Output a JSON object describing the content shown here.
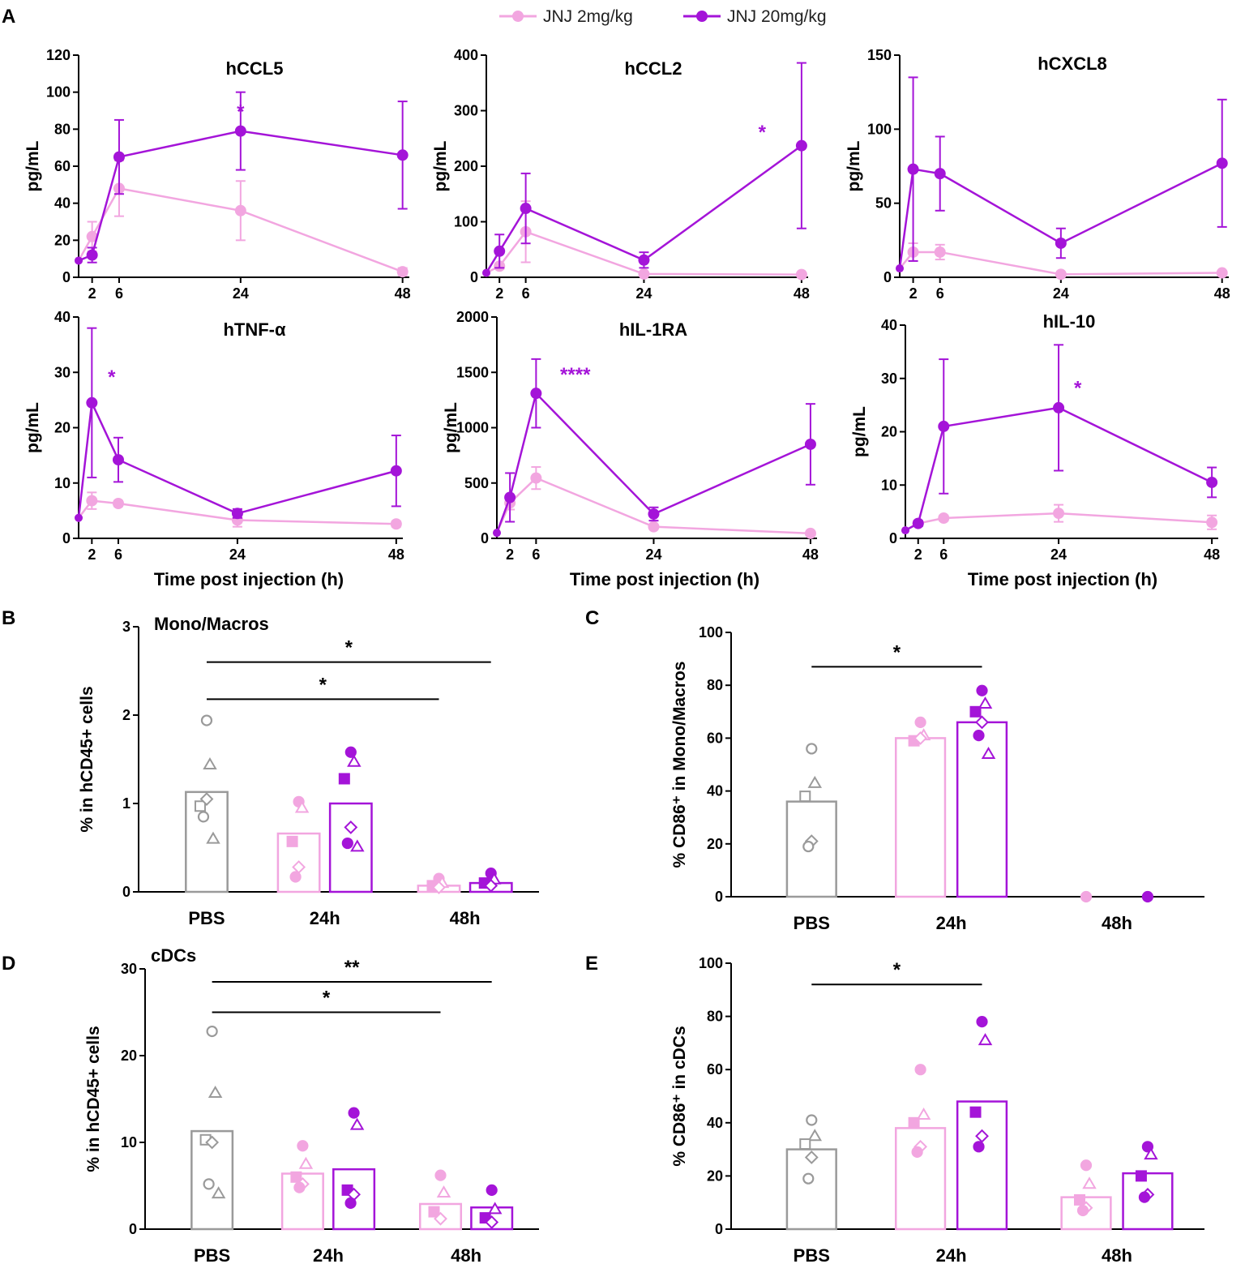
{
  "colors": {
    "low": "#f2a6e0",
    "high": "#a414d8",
    "pbs": "#9a9a9a",
    "sig": "#a414d8"
  },
  "legend": [
    {
      "label": "JNJ 2mg/kg",
      "color": "#f2a6e0"
    },
    {
      "label": "JNJ 20mg/kg",
      "color": "#a414d8"
    }
  ],
  "panel_labels": [
    "A",
    "B",
    "C",
    "D",
    "E"
  ],
  "chart_data": [
    {
      "type": "line",
      "panel": "A",
      "title": "hCCL5",
      "xlabel": "",
      "ylabel": "pg/mL",
      "xticks": [
        2,
        6,
        24,
        48
      ],
      "xlim": [
        0,
        49
      ],
      "ylim": [
        0,
        120
      ],
      "yticks": [
        0,
        20,
        40,
        60,
        80,
        100,
        120
      ],
      "series": [
        {
          "name": "JNJ 2mg/kg",
          "x": [
            0,
            2,
            6,
            24,
            48
          ],
          "y": [
            9,
            22,
            48,
            36,
            3
          ],
          "err": [
            3,
            8,
            15,
            16,
            2
          ]
        },
        {
          "name": "JNJ 20mg/kg",
          "x": [
            0,
            2,
            6,
            24,
            48
          ],
          "y": [
            9,
            12,
            65,
            79,
            66
          ],
          "err": [
            3,
            4,
            20,
            21,
            29
          ]
        }
      ],
      "annotations": [
        {
          "text": "*",
          "x": 24,
          "y": 86
        }
      ]
    },
    {
      "type": "line",
      "panel": "A",
      "title": "hCCL2",
      "xlabel": "",
      "ylabel": "pg/mL",
      "xticks": [
        2,
        6,
        24,
        48
      ],
      "xlim": [
        0,
        49
      ],
      "ylim": [
        0,
        400
      ],
      "yticks": [
        0,
        100,
        200,
        300,
        400
      ],
      "series": [
        {
          "name": "JNJ 2mg/kg",
          "x": [
            0,
            2,
            6,
            24,
            48
          ],
          "y": [
            8,
            20,
            82,
            6,
            5
          ],
          "err": [
            3,
            5,
            55,
            4,
            3
          ]
        },
        {
          "name": "JNJ 20mg/kg",
          "x": [
            0,
            2,
            6,
            24,
            48
          ],
          "y": [
            8,
            47,
            124,
            31,
            237
          ],
          "err": [
            3,
            30,
            63,
            14,
            149
          ]
        }
      ],
      "annotations": [
        {
          "text": "*",
          "x": 42,
          "y": 250
        }
      ]
    },
    {
      "type": "line",
      "panel": "A",
      "title": "hCXCL8",
      "xlabel": "",
      "ylabel": "pg/mL",
      "xticks": [
        2,
        6,
        24,
        48
      ],
      "xlim": [
        0,
        49
      ],
      "ylim": [
        0,
        150
      ],
      "yticks": [
        0,
        50,
        100,
        150
      ],
      "series": [
        {
          "name": "JNJ 2mg/kg",
          "x": [
            0,
            2,
            6,
            24,
            48
          ],
          "y": [
            6,
            17,
            17,
            2,
            3
          ],
          "err": [
            3,
            6,
            5,
            1,
            1
          ]
        },
        {
          "name": "JNJ 20mg/kg",
          "x": [
            0,
            2,
            6,
            24,
            48
          ],
          "y": [
            6,
            73,
            70,
            23,
            77
          ],
          "err": [
            3,
            62,
            25,
            10,
            43
          ]
        }
      ],
      "annotations": []
    },
    {
      "type": "line",
      "panel": "A",
      "title": "hTNF-α",
      "xlabel": "Time post injection (h)",
      "ylabel": "pg/mL",
      "xticks": [
        2,
        6,
        24,
        48
      ],
      "xlim": [
        0,
        49
      ],
      "ylim": [
        0,
        40
      ],
      "yticks": [
        0,
        10,
        20,
        30,
        40
      ],
      "series": [
        {
          "name": "JNJ 2mg/kg",
          "x": [
            0,
            2,
            6,
            24,
            48
          ],
          "y": [
            3.7,
            6.8,
            6.3,
            3.3,
            2.6
          ],
          "err": [
            0.8,
            1.5,
            0.5,
            1.2,
            0.5
          ]
        },
        {
          "name": "JNJ 20mg/kg",
          "x": [
            0,
            2,
            6,
            24,
            48
          ],
          "y": [
            3.7,
            24.5,
            14.2,
            4.5,
            12.2
          ],
          "err": [
            0.8,
            13.5,
            4,
            0.8,
            6.4
          ]
        }
      ],
      "annotations": [
        {
          "text": "*",
          "x": 5,
          "y": 28
        }
      ]
    },
    {
      "type": "line",
      "panel": "A",
      "title": "hIL-1RA",
      "xlabel": "Time post injection (h)",
      "ylabel": "pg/mL",
      "xticks": [
        2,
        6,
        24,
        48
      ],
      "xlim": [
        0,
        49
      ],
      "ylim": [
        0,
        2000
      ],
      "yticks": [
        0,
        500,
        1000,
        1500,
        2000
      ],
      "series": [
        {
          "name": "JNJ 2mg/kg",
          "x": [
            0,
            2,
            6,
            24,
            48
          ],
          "y": [
            50,
            320,
            545,
            105,
            45
          ],
          "err": [
            20,
            60,
            100,
            20,
            15
          ]
        },
        {
          "name": "JNJ 20mg/kg",
          "x": [
            0,
            2,
            6,
            24,
            48
          ],
          "y": [
            50,
            370,
            1310,
            220,
            850
          ],
          "err": [
            20,
            220,
            310,
            60,
            365
          ]
        }
      ],
      "annotations": [
        {
          "text": "****",
          "x": 12,
          "y": 1420
        }
      ]
    },
    {
      "type": "line",
      "panel": "A",
      "title": "hIL-10",
      "xlabel": "Time post injection (h)",
      "ylabel": "pg/mL",
      "xticks": [
        2,
        6,
        24,
        48
      ],
      "xlim": [
        0,
        49
      ],
      "ylim": [
        0,
        40
      ],
      "yticks": [
        0,
        10,
        20,
        30,
        40
      ],
      "series": [
        {
          "name": "JNJ 2mg/kg",
          "x": [
            0,
            2,
            6,
            24,
            48
          ],
          "y": [
            1.5,
            2.8,
            3.8,
            4.7,
            3
          ],
          "err": [
            0.4,
            0.5,
            0.5,
            1.6,
            1.3
          ]
        },
        {
          "name": "JNJ 20mg/kg",
          "x": [
            0,
            2,
            6,
            24,
            48
          ],
          "y": [
            1.5,
            2.8,
            21,
            24.5,
            10.5
          ],
          "err": [
            0.4,
            0.5,
            12.6,
            11.8,
            2.8
          ]
        }
      ],
      "annotations": [
        {
          "text": "*",
          "x": 27,
          "y": 27
        }
      ]
    },
    {
      "type": "bar",
      "panel": "B",
      "title": "Mono/Macros",
      "ylabel": "% in hCD45+ cells",
      "xlabel": "",
      "categories": [
        "PBS",
        "24h",
        "48h"
      ],
      "ylim": [
        0,
        3
      ],
      "yticks": [
        0,
        1,
        2,
        3
      ],
      "bars": [
        {
          "category": "PBS",
          "group": "PBS",
          "value": 1.13,
          "points": [
            1.94,
            1.44,
            0.97,
            1.05,
            0.85,
            0.6
          ]
        },
        {
          "category": "24h",
          "group": "JNJ 2mg/kg",
          "value": 0.66,
          "points": [
            1.02,
            0.95,
            0.57,
            0.28,
            0.17
          ]
        },
        {
          "category": "24h",
          "group": "JNJ 20mg/kg",
          "value": 1.0,
          "points": [
            1.58,
            1.47,
            1.28,
            0.73,
            0.55,
            0.51
          ]
        },
        {
          "category": "48h",
          "group": "JNJ 2mg/kg",
          "value": 0.07,
          "points": [
            0.15,
            0.1,
            0.07,
            0.05
          ]
        },
        {
          "category": "48h",
          "group": "JNJ 20mg/kg",
          "value": 0.1,
          "points": [
            0.21,
            0.14,
            0.1,
            0.07
          ]
        }
      ],
      "significance": [
        {
          "from": "PBS",
          "to": "48h high",
          "text": "*",
          "y": 2.6
        },
        {
          "from": "PBS",
          "to": "48h low",
          "text": "*",
          "y": 2.18
        }
      ]
    },
    {
      "type": "bar",
      "panel": "C",
      "title": "",
      "ylabel": "% CD86⁺ in Mono/Macros",
      "xlabel": "",
      "categories": [
        "PBS",
        "24h",
        "48h"
      ],
      "ylim": [
        0,
        100
      ],
      "yticks": [
        0,
        20,
        40,
        60,
        80,
        100
      ],
      "bars": [
        {
          "category": "PBS",
          "group": "PBS",
          "value": 36,
          "points": [
            56,
            43,
            38,
            21,
            19
          ]
        },
        {
          "category": "24h",
          "group": "JNJ 2mg/kg",
          "value": 60,
          "points": [
            66,
            61,
            59,
            60
          ]
        },
        {
          "category": "24h",
          "group": "JNJ 20mg/kg",
          "value": 66,
          "points": [
            78,
            73,
            70,
            66,
            61,
            54
          ]
        },
        {
          "category": "48h",
          "group": "JNJ 2mg/kg",
          "value": 0,
          "points": [
            0
          ]
        },
        {
          "category": "48h",
          "group": "JNJ 20mg/kg",
          "value": 0,
          "points": [
            0
          ]
        }
      ],
      "significance": [
        {
          "from": "PBS",
          "to": "24h",
          "text": "*",
          "y": 87
        }
      ]
    },
    {
      "type": "bar",
      "panel": "D",
      "title": "cDCs",
      "ylabel": "% in hCD45+ cells",
      "xlabel": "",
      "categories": [
        "PBS",
        "24h",
        "48h"
      ],
      "ylim": [
        0,
        30
      ],
      "yticks": [
        0,
        10,
        20,
        30
      ],
      "bars": [
        {
          "category": "PBS",
          "group": "PBS",
          "value": 11.3,
          "points": [
            22.8,
            15.7,
            10.3,
            10,
            5.2,
            4.1
          ]
        },
        {
          "category": "24h",
          "group": "JNJ 2mg/kg",
          "value": 6.4,
          "points": [
            9.6,
            7.5,
            6,
            5.2,
            4.8
          ]
        },
        {
          "category": "24h",
          "group": "JNJ 20mg/kg",
          "value": 6.9,
          "points": [
            13.4,
            12,
            4.5,
            4,
            3
          ]
        },
        {
          "category": "48h",
          "group": "JNJ 2mg/kg",
          "value": 2.9,
          "points": [
            6.2,
            4.2,
            2,
            1.2
          ]
        },
        {
          "category": "48h",
          "group": "JNJ 20mg/kg",
          "value": 2.5,
          "points": [
            4.5,
            2.3,
            1.3,
            0.8
          ]
        }
      ],
      "significance": [
        {
          "from": "PBS",
          "to": "48h high",
          "text": "**",
          "y": 28.5
        },
        {
          "from": "PBS",
          "to": "48h low",
          "text": "*",
          "y": 25
        }
      ]
    },
    {
      "type": "bar",
      "panel": "E",
      "title": "",
      "ylabel": "% CD86⁺ in cDCs",
      "xlabel": "",
      "categories": [
        "PBS",
        "24h",
        "48h"
      ],
      "ylim": [
        0,
        100
      ],
      "yticks": [
        0,
        20,
        40,
        60,
        80,
        100
      ],
      "bars": [
        {
          "category": "PBS",
          "group": "PBS",
          "value": 30,
          "points": [
            41,
            35,
            32,
            27,
            19
          ]
        },
        {
          "category": "24h",
          "group": "JNJ 2mg/kg",
          "value": 38,
          "points": [
            60,
            43,
            40,
            31,
            29
          ]
        },
        {
          "category": "24h",
          "group": "JNJ 20mg/kg",
          "value": 48,
          "points": [
            78,
            71,
            44,
            35,
            31
          ]
        },
        {
          "category": "48h",
          "group": "JNJ 2mg/kg",
          "value": 12,
          "points": [
            24,
            17,
            11,
            8,
            7
          ]
        },
        {
          "category": "48h",
          "group": "JNJ 20mg/kg",
          "value": 21,
          "points": [
            31,
            28,
            20,
            13,
            12
          ]
        }
      ],
      "significance": [
        {
          "from": "PBS",
          "to": "24h",
          "text": "*",
          "y": 92
        }
      ]
    }
  ]
}
